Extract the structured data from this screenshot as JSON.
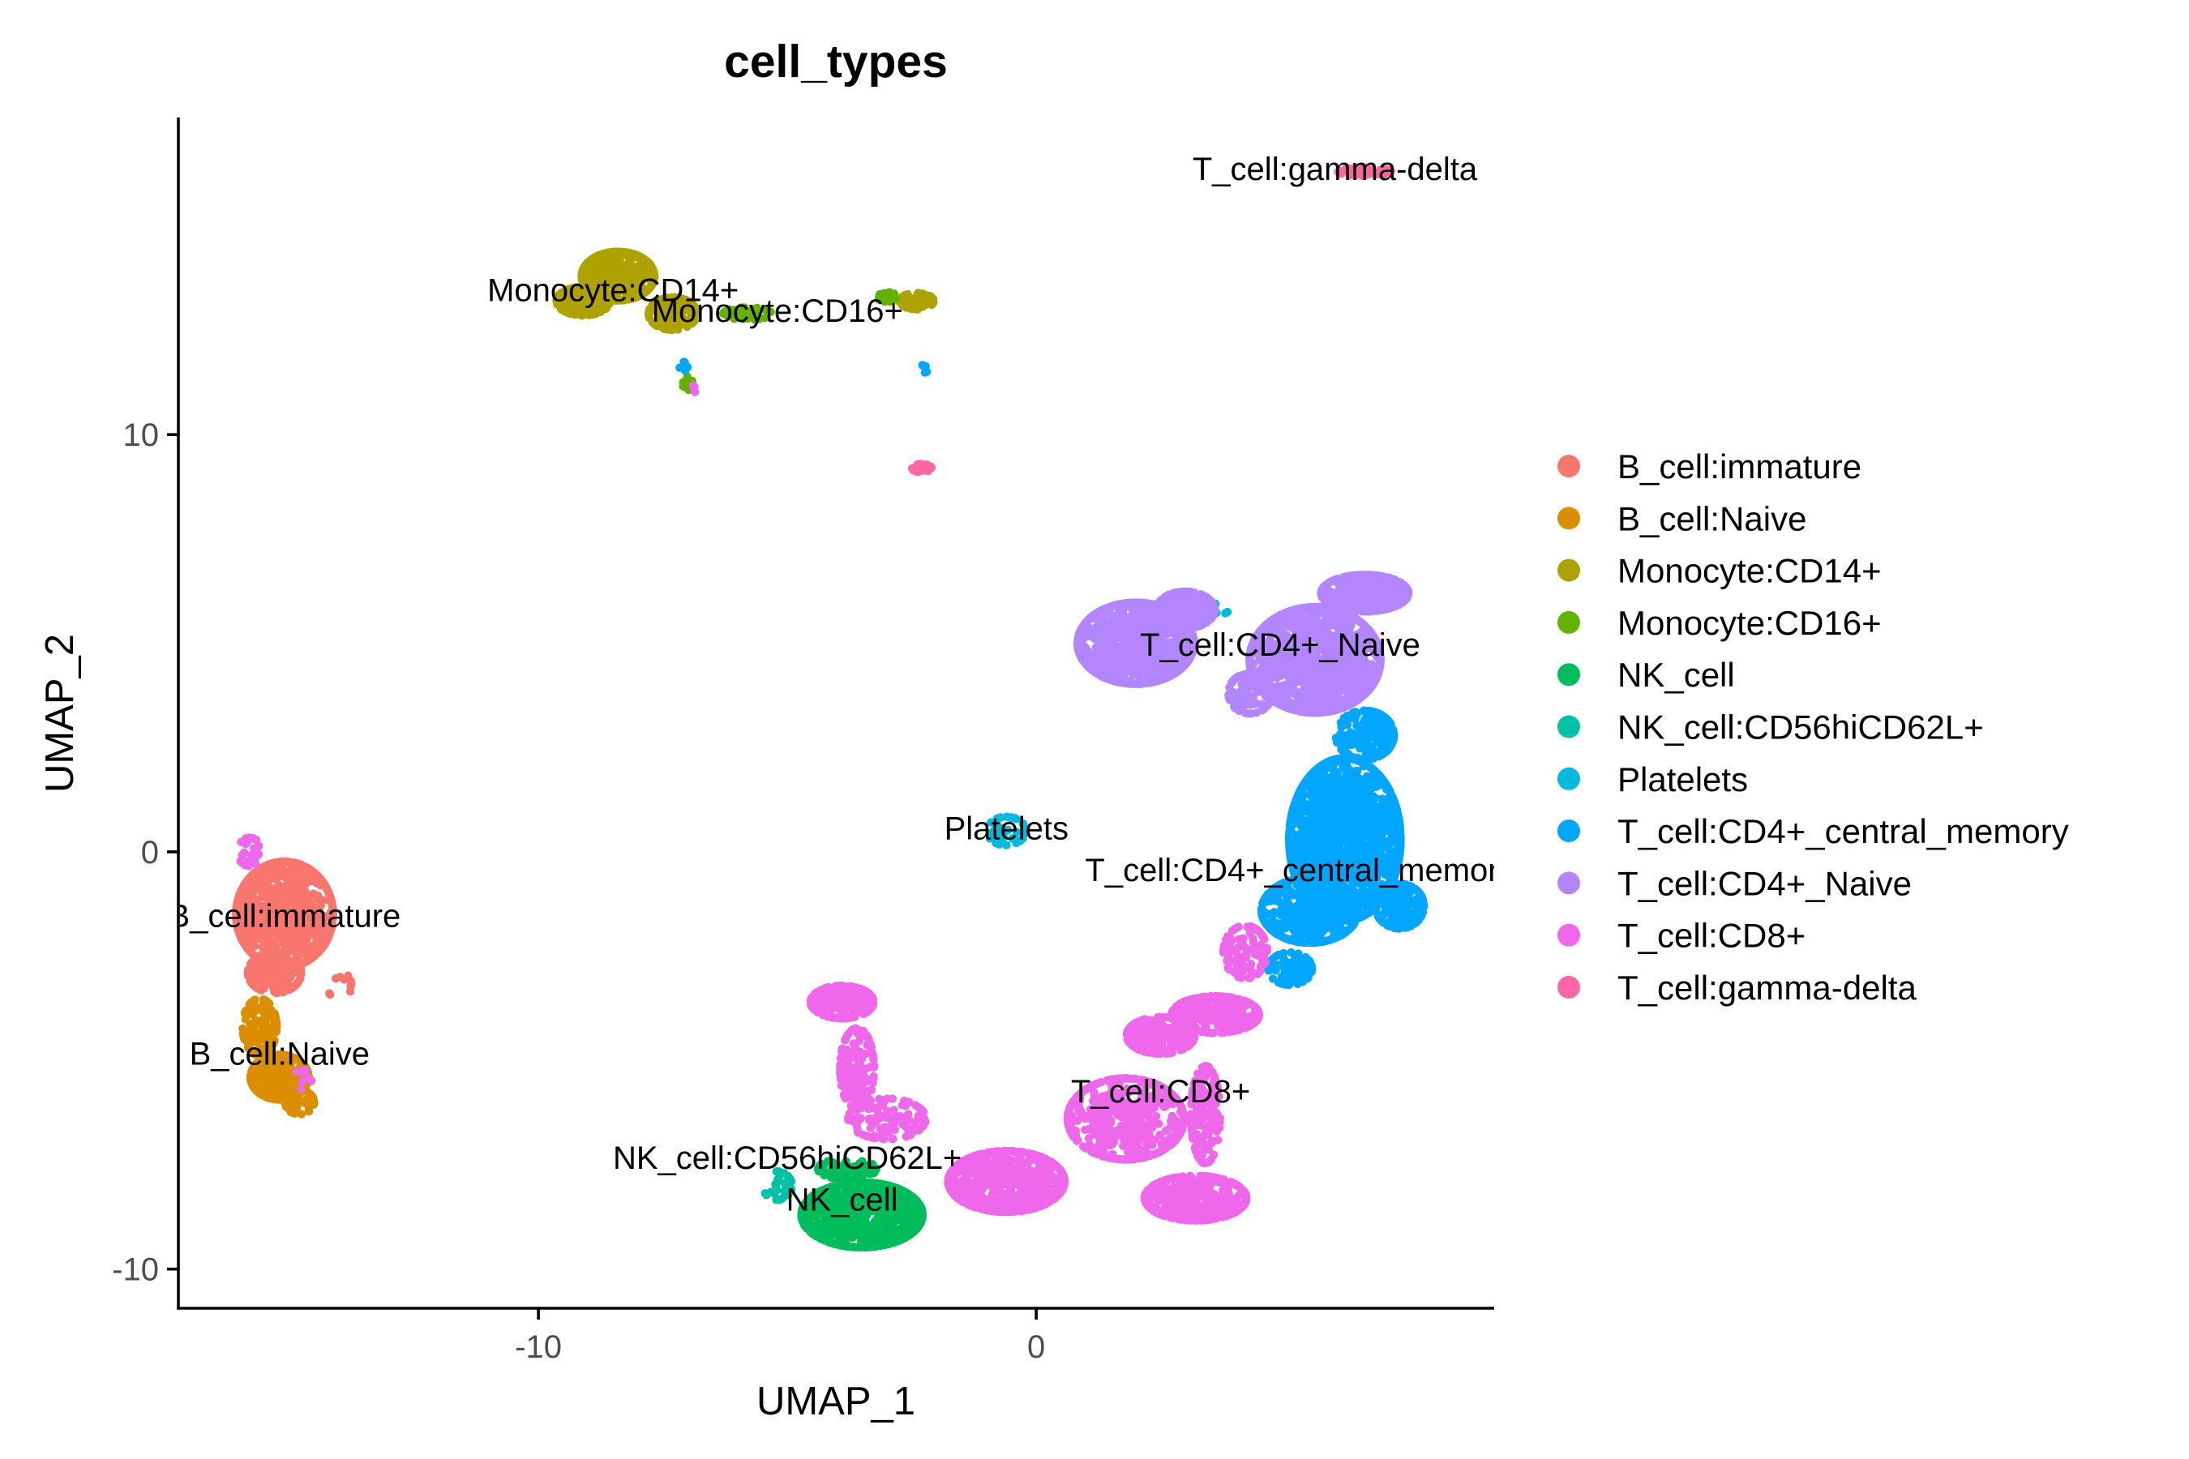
{
  "chart_data": {
    "type": "scatter",
    "title": "cell_types",
    "xlabel": "UMAP_1",
    "ylabel": "UMAP_2",
    "xlim": [
      -17.2,
      9.2
    ],
    "ylim": [
      -10.9,
      17.6
    ],
    "xticks": [
      {
        "value": -10,
        "label": "-10"
      },
      {
        "value": 0,
        "label": "0"
      }
    ],
    "yticks": [
      {
        "value": -10,
        "label": "-10"
      },
      {
        "value": 0,
        "label": "0"
      },
      {
        "value": 10,
        "label": "10"
      }
    ],
    "grid": false,
    "legend_position": "right",
    "series": [
      {
        "name": "B_cell:immature",
        "color": "#F8766D",
        "label_text": "B_cell:immature",
        "label_pos": [
          -15.1,
          -1.8
        ],
        "blobs": [
          {
            "cx": -15.1,
            "cy": -1.5,
            "rx": 1.0,
            "ry": 1.3,
            "n": 950
          },
          {
            "cx": -15.3,
            "cy": -2.9,
            "rx": 0.55,
            "ry": 0.5,
            "n": 120
          },
          {
            "cx": -14.0,
            "cy": -3.2,
            "rx": 0.25,
            "ry": 0.35,
            "n": 10
          }
        ]
      },
      {
        "name": "B_cell:Naive",
        "color": "#DB8E00",
        "label_text": "B_cell:Naive",
        "label_pos": [
          -15.2,
          -5.1
        ],
        "blobs": [
          {
            "cx": -15.6,
            "cy": -4.2,
            "rx": 0.35,
            "ry": 0.7,
            "n": 130
          },
          {
            "cx": -15.2,
            "cy": -5.4,
            "rx": 0.6,
            "ry": 0.55,
            "n": 300
          },
          {
            "cx": -14.8,
            "cy": -6.0,
            "rx": 0.3,
            "ry": 0.3,
            "n": 30
          }
        ]
      },
      {
        "name": "Monocyte:CD14+",
        "color": "#AEA200",
        "label_text": "Monocyte:CD14+",
        "label_pos": [
          -8.5,
          13.2
        ],
        "blobs": [
          {
            "cx": -8.4,
            "cy": 13.8,
            "rx": 0.75,
            "ry": 0.6,
            "n": 500
          },
          {
            "cx": -9.1,
            "cy": 13.2,
            "rx": 0.55,
            "ry": 0.35,
            "n": 150
          },
          {
            "cx": -7.3,
            "cy": 12.9,
            "rx": 0.5,
            "ry": 0.4,
            "n": 120
          },
          {
            "cx": -2.4,
            "cy": 13.2,
            "rx": 0.35,
            "ry": 0.2,
            "n": 60
          }
        ]
      },
      {
        "name": "Monocyte:CD16+",
        "color": "#64B200",
        "label_text": "Monocyte:CD16+",
        "label_pos": [
          -5.2,
          12.7
        ],
        "blobs": [
          {
            "cx": -5.8,
            "cy": 12.9,
            "rx": 0.5,
            "ry": 0.15,
            "n": 45
          },
          {
            "cx": -7.0,
            "cy": 11.2,
            "rx": 0.1,
            "ry": 0.2,
            "n": 15
          },
          {
            "cx": -3.0,
            "cy": 13.3,
            "rx": 0.2,
            "ry": 0.12,
            "n": 15
          }
        ]
      },
      {
        "name": "NK_cell",
        "color": "#00BD5C",
        "label_text": "NK_cell",
        "label_pos": [
          -3.9,
          -8.6
        ],
        "blobs": [
          {
            "cx": -3.5,
            "cy": -8.7,
            "rx": 1.25,
            "ry": 0.8,
            "n": 950
          },
          {
            "cx": -3.8,
            "cy": -7.6,
            "rx": 0.6,
            "ry": 0.25,
            "n": 80
          }
        ]
      },
      {
        "name": "NK_cell:CD56hiCD62L+",
        "color": "#00C1A7",
        "label_text": "NK_cell:CD56hiCD62L+",
        "label_pos": [
          -5.0,
          -7.6
        ],
        "blobs": [
          {
            "cx": -5.2,
            "cy": -8.0,
            "rx": 0.3,
            "ry": 0.35,
            "n": 35
          }
        ]
      },
      {
        "name": "Platelets",
        "color": "#00BADE",
        "label_text": "Platelets",
        "label_pos": [
          -0.6,
          0.3
        ],
        "blobs": [
          {
            "cx": -0.6,
            "cy": 0.5,
            "rx": 0.4,
            "ry": 0.35,
            "n": 40
          },
          {
            "cx": 3.6,
            "cy": 5.8,
            "rx": 0.35,
            "ry": 0.15,
            "n": 15
          }
        ]
      },
      {
        "name": "T_cell:CD4+_central_memory",
        "color": "#00A6FF",
        "label_text": "T_cell:CD4+_central_memory",
        "label_pos": [
          5.3,
          -0.7
        ],
        "blobs": [
          {
            "cx": 6.2,
            "cy": 0.3,
            "rx": 1.15,
            "ry": 2.0,
            "n": 1800
          },
          {
            "cx": 5.5,
            "cy": -1.4,
            "rx": 1.0,
            "ry": 0.8,
            "n": 500
          },
          {
            "cx": 7.3,
            "cy": -1.3,
            "rx": 0.5,
            "ry": 0.55,
            "n": 200
          },
          {
            "cx": 6.6,
            "cy": 2.8,
            "rx": 0.6,
            "ry": 0.6,
            "n": 200
          },
          {
            "cx": 5.1,
            "cy": -2.8,
            "rx": 0.45,
            "ry": 0.4,
            "n": 80
          },
          {
            "cx": -2.2,
            "cy": 11.6,
            "rx": 0.1,
            "ry": 0.15,
            "n": 5
          },
          {
            "cx": -7.1,
            "cy": 11.6,
            "rx": 0.1,
            "ry": 0.15,
            "n": 5
          }
        ]
      },
      {
        "name": "T_cell:CD4+_Naive",
        "color": "#B385FF",
        "label_text": "T_cell:CD4+_Naive",
        "label_pos": [
          4.9,
          4.7
        ],
        "blobs": [
          {
            "cx": 2.0,
            "cy": 5.0,
            "rx": 1.2,
            "ry": 1.0,
            "n": 1100
          },
          {
            "cx": 3.0,
            "cy": 5.8,
            "rx": 0.6,
            "ry": 0.45,
            "n": 200
          },
          {
            "cx": 5.6,
            "cy": 4.6,
            "rx": 1.35,
            "ry": 1.3,
            "n": 1500
          },
          {
            "cx": 6.6,
            "cy": 6.2,
            "rx": 0.9,
            "ry": 0.45,
            "n": 500
          },
          {
            "cx": 4.3,
            "cy": 3.8,
            "rx": 0.45,
            "ry": 0.5,
            "n": 100
          }
        ]
      },
      {
        "name": "T_cell:CD8+",
        "color": "#EF67EB",
        "label_text": "T_cell:CD8+",
        "label_pos": [
          2.5,
          -6.0
        ],
        "blobs": [
          {
            "cx": -3.9,
            "cy": -3.6,
            "rx": 0.65,
            "ry": 0.4,
            "n": 200
          },
          {
            "cx": -3.6,
            "cy": -5.2,
            "rx": 0.35,
            "ry": 1.0,
            "n": 160
          },
          {
            "cx": -3.0,
            "cy": -6.4,
            "rx": 0.8,
            "ry": 0.5,
            "n": 110
          },
          {
            "cx": -0.6,
            "cy": -7.9,
            "rx": 1.2,
            "ry": 0.75,
            "n": 650
          },
          {
            "cx": 1.8,
            "cy": -6.4,
            "rx": 1.2,
            "ry": 1.0,
            "n": 500
          },
          {
            "cx": 2.5,
            "cy": -4.4,
            "rx": 0.7,
            "ry": 0.45,
            "n": 200
          },
          {
            "cx": 3.6,
            "cy": -3.9,
            "rx": 0.9,
            "ry": 0.45,
            "n": 300
          },
          {
            "cx": 3.2,
            "cy": -8.3,
            "rx": 1.05,
            "ry": 0.55,
            "n": 400
          },
          {
            "cx": 3.4,
            "cy": -6.3,
            "rx": 0.3,
            "ry": 1.2,
            "n": 160
          },
          {
            "cx": 4.2,
            "cy": -2.4,
            "rx": 0.45,
            "ry": 0.65,
            "n": 100
          },
          {
            "cx": -15.8,
            "cy": -0.0,
            "rx": 0.25,
            "ry": 0.35,
            "n": 25
          },
          {
            "cx": -14.7,
            "cy": -5.4,
            "rx": 0.25,
            "ry": 0.3,
            "n": 8
          },
          {
            "cx": -6.9,
            "cy": 11.1,
            "rx": 0.08,
            "ry": 0.1,
            "n": 4
          }
        ]
      },
      {
        "name": "T_cell:gamma-delta",
        "color": "#FF67A4",
        "label_text": "T_cell:gamma-delta",
        "label_pos": [
          6.0,
          16.1
        ],
        "blobs": [
          {
            "cx": 6.6,
            "cy": 16.3,
            "rx": 0.55,
            "ry": 0.1,
            "n": 60
          },
          {
            "cx": -2.3,
            "cy": 9.2,
            "rx": 0.2,
            "ry": 0.1,
            "n": 25
          }
        ]
      }
    ]
  }
}
